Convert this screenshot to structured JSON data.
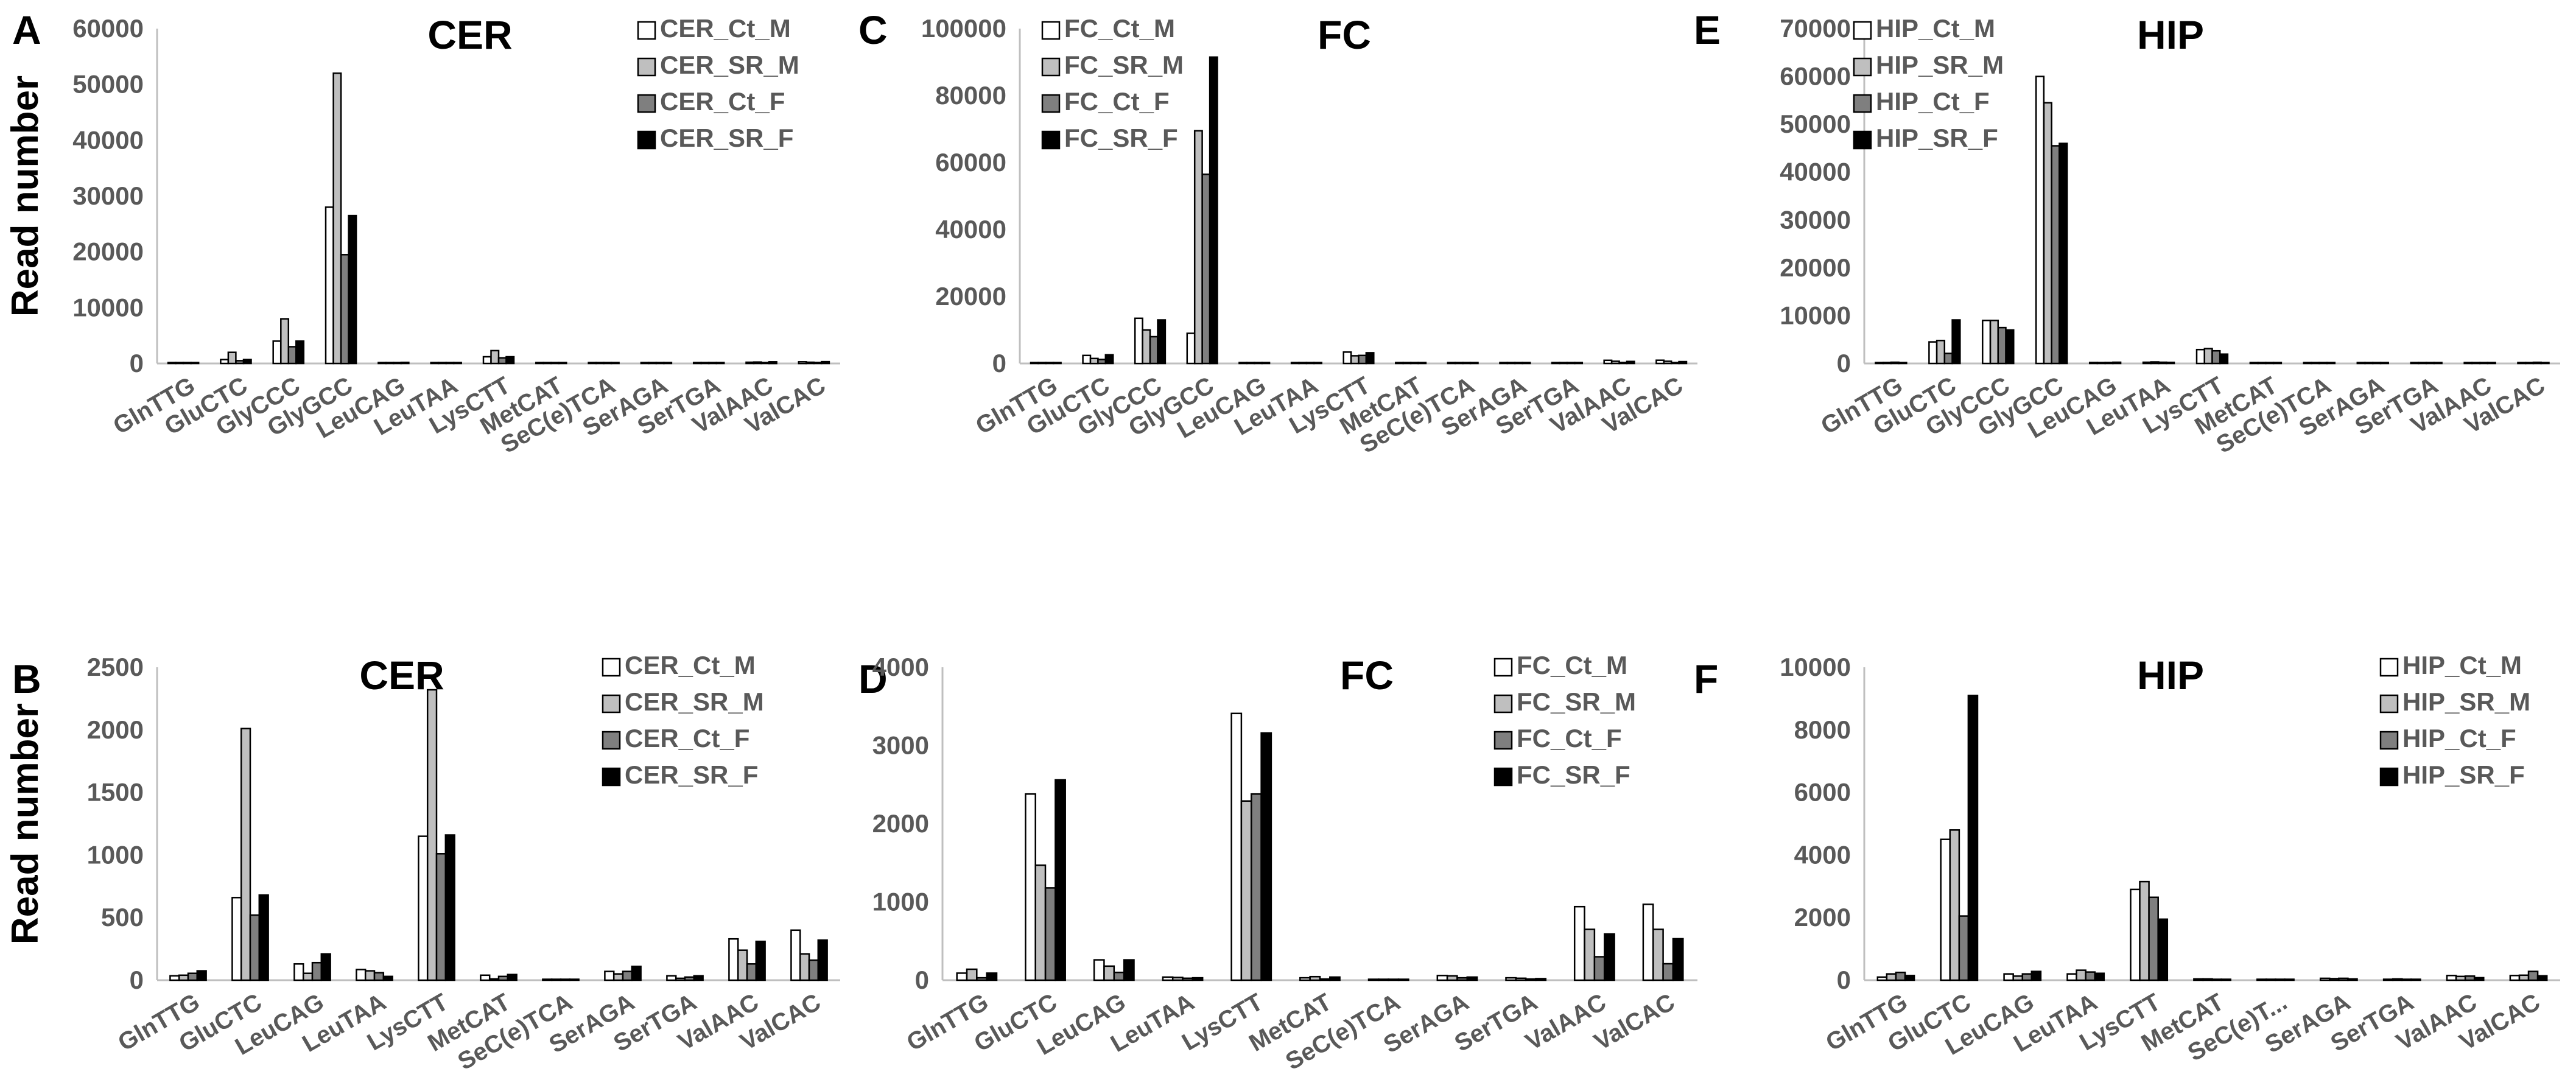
{
  "figure": {
    "shared_ylabel": "Read number"
  },
  "chart_data": [
    {
      "panel": "A",
      "type": "bar",
      "title": "CER",
      "ylabel": "Read number",
      "ylim": [
        0,
        60000
      ],
      "yticks": [
        "0",
        "10000",
        "20000",
        "30000",
        "40000",
        "50000",
        "60000"
      ],
      "categories": [
        "GlnTTG",
        "GluCTC",
        "GlyCCC",
        "GlyGCC",
        "LeuCAG",
        "LeuTAA",
        "LysCTT",
        "MetCAT",
        "SeC(e)TCA",
        "SerAGA",
        "SerTGA",
        "ValAAC",
        "ValCAC"
      ],
      "legend_position": "top-right",
      "series": [
        {
          "name": "CER_Ct_M",
          "color": "#ffffff",
          "values": [
            120,
            700,
            4000,
            28000,
            100,
            80,
            1200,
            60,
            20,
            90,
            80,
            220,
            300
          ]
        },
        {
          "name": "CER_SR_M",
          "color": "#bfbfbf",
          "values": [
            150,
            2000,
            8000,
            52000,
            130,
            100,
            2300,
            80,
            20,
            110,
            90,
            250,
            220
          ]
        },
        {
          "name": "CER_Ct_F",
          "color": "#7f7f7f",
          "values": [
            130,
            500,
            3000,
            19500,
            110,
            90,
            1000,
            60,
            20,
            80,
            70,
            150,
            180
          ]
        },
        {
          "name": "CER_SR_F",
          "color": "#000000",
          "values": [
            160,
            700,
            4000,
            26500,
            200,
            100,
            1200,
            70,
            20,
            120,
            90,
            300,
            320
          ]
        }
      ]
    },
    {
      "panel": "B",
      "type": "bar",
      "title": "CER",
      "ylabel": "Read number",
      "ylim": [
        0,
        2500
      ],
      "yticks": [
        "0",
        "500",
        "1000",
        "1500",
        "2000",
        "2500"
      ],
      "categories": [
        "GlnTTG",
        "GluCTC",
        "LeuCAG",
        "LeuTAA",
        "LysCTT",
        "MetCAT",
        "SeC(e)TCA",
        "SerAGA",
        "SerTGA",
        "ValAAC",
        "ValCAC"
      ],
      "legend_position": "top-right",
      "series": [
        {
          "name": "CER_Ct_M",
          "color": "#ffffff",
          "values": [
            35,
            660,
            130,
            85,
            1150,
            40,
            5,
            70,
            35,
            330,
            400
          ]
        },
        {
          "name": "CER_SR_M",
          "color": "#bfbfbf",
          "values": [
            40,
            2010,
            55,
            75,
            2320,
            10,
            5,
            50,
            15,
            240,
            210
          ]
        },
        {
          "name": "CER_Ct_F",
          "color": "#7f7f7f",
          "values": [
            55,
            520,
            140,
            60,
            1010,
            30,
            5,
            70,
            25,
            130,
            160
          ]
        },
        {
          "name": "CER_SR_F",
          "color": "#000000",
          "values": [
            75,
            680,
            210,
            30,
            1160,
            45,
            5,
            110,
            35,
            310,
            320
          ]
        }
      ]
    },
    {
      "panel": "C",
      "type": "bar",
      "title": "FC",
      "ylabel": "",
      "ylim": [
        0,
        100000
      ],
      "yticks": [
        "0",
        "20000",
        "40000",
        "60000",
        "80000",
        "100000"
      ],
      "categories": [
        "GlnTTG",
        "GluCTC",
        "GlyCCC",
        "GlyGCC",
        "LeuCAG",
        "LeuTAA",
        "LysCTT",
        "MetCAT",
        "SeC(e)TCA",
        "SerAGA",
        "SerTGA",
        "ValAAC",
        "ValCAC"
      ],
      "legend_position": "top-left",
      "series": [
        {
          "name": "FC_Ct_M",
          "color": "#ffffff",
          "values": [
            90,
            2400,
            13500,
            9000,
            250,
            50,
            3400,
            30,
            10,
            60,
            40,
            950,
            970
          ]
        },
        {
          "name": "FC_SR_M",
          "color": "#bfbfbf",
          "values": [
            140,
            1500,
            10000,
            69500,
            180,
            40,
            2300,
            50,
            10,
            50,
            30,
            650,
            650
          ]
        },
        {
          "name": "FC_Ct_F",
          "color": "#7f7f7f",
          "values": [
            30,
            1200,
            8000,
            56500,
            100,
            30,
            2400,
            20,
            10,
            30,
            20,
            300,
            200
          ]
        },
        {
          "name": "FC_SR_F",
          "color": "#000000",
          "values": [
            90,
            2600,
            13000,
            91500,
            260,
            30,
            3200,
            40,
            10,
            40,
            20,
            600,
            550
          ]
        }
      ]
    },
    {
      "panel": "D",
      "type": "bar",
      "title": "FC",
      "ylabel": "",
      "ylim": [
        0,
        4000
      ],
      "yticks": [
        "0",
        "1000",
        "2000",
        "3000",
        "4000"
      ],
      "categories": [
        "GlnTTG",
        "GluCTC",
        "LeuCAG",
        "LeuTAA",
        "LysCTT",
        "MetCAT",
        "SeC(e)TCA",
        "SerAGA",
        "SerTGA",
        "ValAAC",
        "ValCAC"
      ],
      "legend_position": "top-right",
      "series": [
        {
          "name": "FC_Ct_M",
          "color": "#ffffff",
          "values": [
            90,
            2380,
            260,
            40,
            3410,
            30,
            10,
            60,
            30,
            940,
            970
          ]
        },
        {
          "name": "FC_SR_M",
          "color": "#bfbfbf",
          "values": [
            140,
            1470,
            180,
            35,
            2290,
            45,
            10,
            55,
            25,
            650,
            650
          ]
        },
        {
          "name": "FC_Ct_F",
          "color": "#7f7f7f",
          "values": [
            30,
            1180,
            100,
            25,
            2380,
            15,
            5,
            30,
            15,
            300,
            210
          ]
        },
        {
          "name": "FC_SR_F",
          "color": "#000000",
          "values": [
            90,
            2560,
            260,
            30,
            3160,
            40,
            10,
            40,
            20,
            590,
            530
          ]
        }
      ]
    },
    {
      "panel": "E",
      "type": "bar",
      "title": "HIP",
      "ylabel": "",
      "ylim": [
        0,
        70000
      ],
      "yticks": [
        "0",
        "10000",
        "20000",
        "30000",
        "40000",
        "50000",
        "60000",
        "70000"
      ],
      "categories": [
        "GlnTTG",
        "GluCTC",
        "GlyCCC",
        "GlyGCC",
        "LeuCAG",
        "LeuTAA",
        "LysCTT",
        "MetCAT",
        "SeC(e)TCA",
        "SerAGA",
        "SerTGA",
        "ValAAC",
        "ValCAC"
      ],
      "legend_position": "top-left",
      "series": [
        {
          "name": "HIP_Ct_M",
          "color": "#ffffff",
          "values": [
            100,
            4500,
            9000,
            60000,
            200,
            250,
            2900,
            40,
            10,
            60,
            30,
            150,
            150
          ]
        },
        {
          "name": "HIP_SR_M",
          "color": "#bfbfbf",
          "values": [
            200,
            4800,
            9000,
            54500,
            150,
            320,
            3100,
            40,
            10,
            50,
            40,
            120,
            160
          ]
        },
        {
          "name": "HIP_Ct_F",
          "color": "#7f7f7f",
          "values": [
            250,
            2100,
            7500,
            45500,
            200,
            260,
            2650,
            30,
            10,
            60,
            30,
            130,
            240
          ]
        },
        {
          "name": "HIP_SR_F",
          "color": "#000000",
          "values": [
            150,
            9100,
            7000,
            46000,
            250,
            230,
            1950,
            30,
            10,
            40,
            20,
            80,
            140
          ]
        }
      ]
    },
    {
      "panel": "F",
      "type": "bar",
      "title": "HIP",
      "ylabel": "",
      "ylim": [
        0,
        10000
      ],
      "yticks": [
        "0",
        "2000",
        "4000",
        "6000",
        "8000",
        "10000"
      ],
      "categories": [
        "GlnTTG",
        "GluCTC",
        "LeuCAG",
        "LeuTAA",
        "LysCTT",
        "MetCAT",
        "SeC(e)T...",
        "SerAGA",
        "SerTGA",
        "ValAAC",
        "ValCAC"
      ],
      "legend_position": "top-right",
      "series": [
        {
          "name": "HIP_Ct_M",
          "color": "#ffffff",
          "values": [
            100,
            4500,
            200,
            200,
            2900,
            40,
            10,
            60,
            30,
            150,
            150
          ]
        },
        {
          "name": "HIP_SR_M",
          "color": "#bfbfbf",
          "values": [
            200,
            4800,
            130,
            320,
            3150,
            40,
            10,
            50,
            40,
            120,
            160
          ]
        },
        {
          "name": "HIP_Ct_F",
          "color": "#7f7f7f",
          "values": [
            250,
            2050,
            200,
            260,
            2650,
            30,
            10,
            60,
            30,
            130,
            280
          ]
        },
        {
          "name": "HIP_SR_F",
          "color": "#000000",
          "values": [
            150,
            9100,
            280,
            220,
            1950,
            30,
            10,
            40,
            20,
            80,
            140
          ]
        }
      ]
    }
  ]
}
